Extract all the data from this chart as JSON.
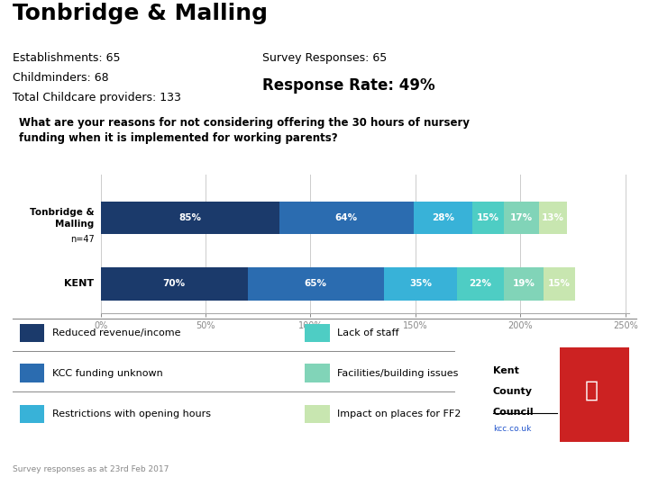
{
  "title": "Tonbridge & Malling",
  "stats_left": [
    "Establishments: 65",
    "Childminders: 68",
    "Total Childcare providers: 133"
  ],
  "stats_right_line1": "Survey Responses: 65",
  "stats_right_line2": "Response Rate: 49%",
  "question": "What are your reasons for not considering offering the 30 hours of nursery\nfunding when it is implemented for working parents?",
  "rows": [
    {
      "label": "Tonbridge &\nMalling",
      "sublabel": "n=47",
      "values": [
        85,
        64,
        28,
        15,
        17,
        13
      ]
    },
    {
      "label": "KENT",
      "sublabel": "",
      "values": [
        70,
        65,
        35,
        22,
        19,
        15
      ]
    }
  ],
  "colors": [
    "#1b3a6b",
    "#2b6cb0",
    "#38b2d8",
    "#4ecdc4",
    "#81d4b8",
    "#c8e6b0"
  ],
  "legend_items": [
    {
      "color": "#1b3a6b",
      "label": "Reduced revenue/income"
    },
    {
      "color": "#2b6cb0",
      "label": "KCC funding unknown"
    },
    {
      "color": "#38b2d8",
      "label": "Restrictions with opening hours"
    },
    {
      "color": "#4ecdc4",
      "label": "Lack of staff"
    },
    {
      "color": "#81d4b8",
      "label": "Facilities/building issues"
    },
    {
      "color": "#c8e6b0",
      "label": "Impact on places for FF2"
    }
  ],
  "xlabel_ticks": [
    0,
    50,
    100,
    150,
    200,
    250
  ],
  "xlabel_labels": [
    "0%",
    "50%",
    "100%",
    "150%",
    "200%",
    "250%"
  ],
  "xlim": [
    0,
    250
  ],
  "footnote": "Survey responses as at 23rd Feb 2017",
  "bg": "#ffffff"
}
